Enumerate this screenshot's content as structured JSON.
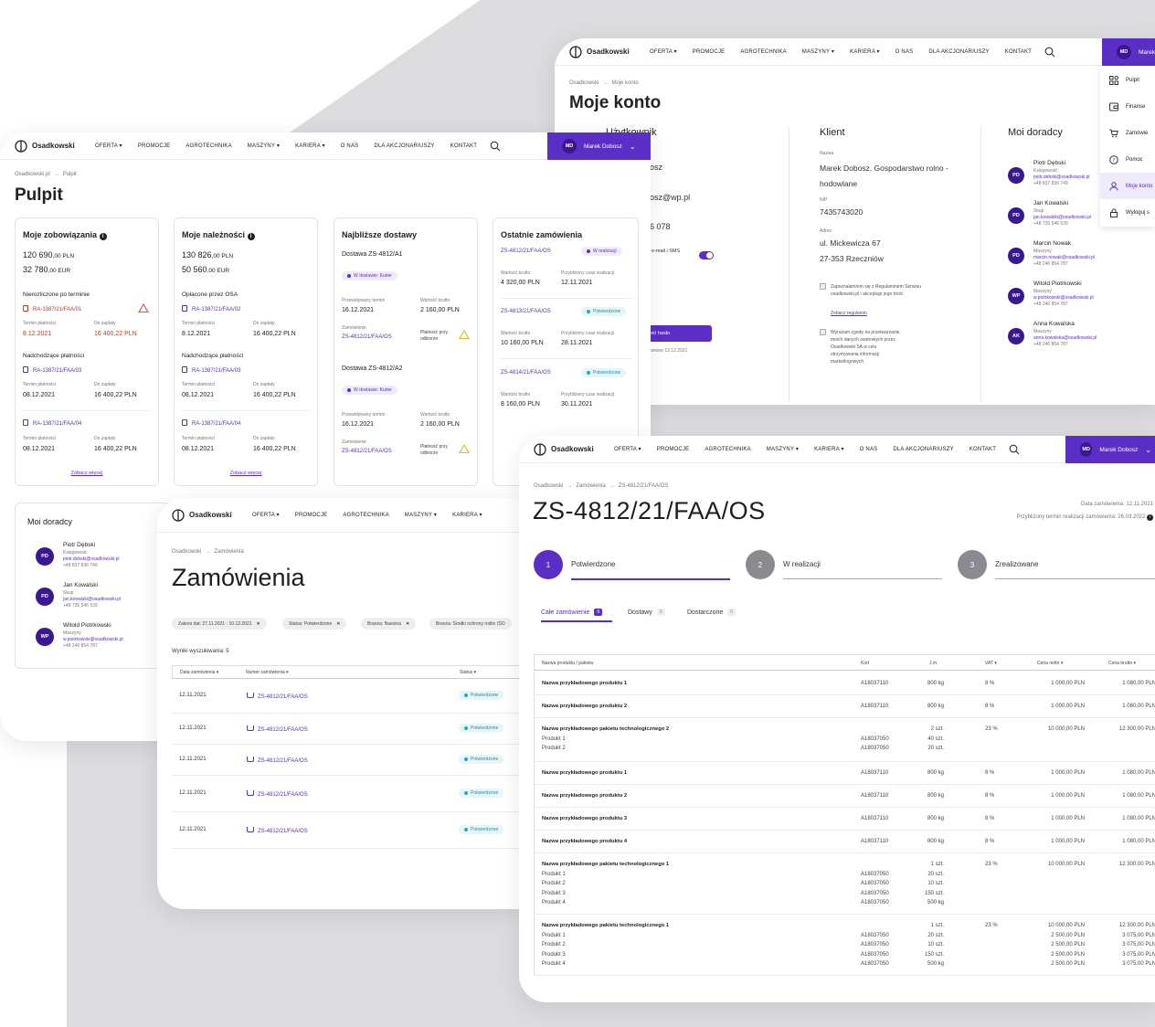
{
  "nav": {
    "logo": "Osadkowski",
    "items": [
      "OFERTA",
      "PROMOCJE",
      "AGROTECHNIKA",
      "MASZYNY",
      "KARIERA",
      "O NAS",
      "DLA AKCJONARIUSZY",
      "KONTAKT"
    ],
    "user_initials": "MD",
    "user_name": "Marek Dobosz",
    "user_name_short": "Marek"
  },
  "konto": {
    "crumb": [
      "Osadkowski",
      "Moje konto"
    ],
    "title": "Moje konto",
    "sections": {
      "user": "Użytkownik",
      "client": "Klient",
      "advisors": "Moi doradcy"
    },
    "user_partial": {
      "name": "osz",
      "email": "osz@wp.pl",
      "phone": "6 078",
      "sms": "e-mail i SMS",
      "button": "ień hasło",
      "changed": "ianone 12.12.2021"
    },
    "client": {
      "name_label": "Nazwa",
      "name": "Marek Dobosz. Gospodarstwo rolno - hodowlane",
      "nip_label": "NIP",
      "nip": "7435743020",
      "addr_label": "Adres",
      "addr1": "ul. Mickewicza 67",
      "addr2": "27-353 Rzeczniów",
      "consent1": "Zapoznałam/em się z Regulaminem Serwisu osadkowski.pl i akceptuję jego treść",
      "consent1_link": "Zobacz regulamin",
      "consent2": "Wyrażam zgodę na przetwarzanie moich danych osobowych przez Osadkowski SA w celu otrzymywania informacji marketingowych"
    },
    "advisors": [
      {
        "ini": "PD",
        "name": "Piotr Dębski",
        "role": "Księgowość",
        "email": "piotr.debski@osadkowski.pl",
        "phone": "+48 837 836 749"
      },
      {
        "ini": "PD",
        "name": "Jan Kowalski",
        "role": "Skup",
        "email": "jan.kowalski@osadkowski.pl",
        "phone": "+48 735 546 539"
      },
      {
        "ini": "PD",
        "name": "Marcin Nowak",
        "role": "Maszyny",
        "email": "marcin.nowak@osadkowski.pl",
        "phone": "+48 246 854 787"
      },
      {
        "ini": "WP",
        "name": "Witold Piotrkowski",
        "role": "Maszyny",
        "email": "w.piotrkowski@osadkowski.pl",
        "phone": "+48 246 854 787"
      },
      {
        "ini": "AK",
        "name": "Anna Kowalska",
        "role": "Maszyny",
        "email": "anna.kowalska@osadkowski.pl",
        "phone": "+48 246 854 787"
      }
    ],
    "menu": [
      "Pulpit",
      "Finanse",
      "Zamówie",
      "Pomoc",
      "Moje konto",
      "Wyloguj s"
    ]
  },
  "pulpit": {
    "crumb": [
      "Osadkowski.pl",
      "Pulpit"
    ],
    "title": "Pulpit",
    "obligations": {
      "title": "Moje zobowiązania",
      "amount1": "120 690",
      "dec1": ",00 PLN",
      "amount2": "32 780",
      "dec2": ",00 EUR",
      "overdue_title": "Nierozliczone po terminie",
      "overdue_doc": "RA-1387/21/FAA/01",
      "lbl_term": "Termin płatności",
      "lbl_pay": "Do zapłaty",
      "overdue_date": "8.12.2021",
      "overdue_amount": "16 400,22 PLN",
      "upcoming_title": "Nadchodzące płatności",
      "upcoming": [
        {
          "doc": "RA-1387/21/FAA/03",
          "date": "08.12.2021",
          "amount": "16 400,22 PLN"
        },
        {
          "doc": "RA-1387/21/FAA/04",
          "date": "08.12.2021",
          "amount": "16 400,22 PLN"
        }
      ],
      "more": "Zobacz więcej"
    },
    "receivables": {
      "title": "Moje należności",
      "amount1": "130 826",
      "dec1": ",00 PLN",
      "amount2": "50 560",
      "dec2": ",00 EUR",
      "paid_title": "Opłacone przez OSA",
      "paid_doc": "RA-1387/21/FAA/02",
      "paid_date": "8.12.2021",
      "paid_amount": "16 400,22 PLN",
      "upcoming_title": "Nadchodzące płatności",
      "upcoming": [
        {
          "doc": "RA-1387/21/FAA/03",
          "date": "08.12.2021",
          "amount": "16 400,22 PLN"
        },
        {
          "doc": "RA-1387/21/FAA/04",
          "date": "08.12.2021",
          "amount": "16 400,22 PLN"
        }
      ],
      "more": "Zobacz więcej"
    },
    "deliveries": {
      "title": "Najbliższe dostawy",
      "items": [
        {
          "name": "Dostawa ZS-4812/A1",
          "status": "W dostawie: Kurier",
          "lbl_term": "Przewidywany termin",
          "term": "16.12.2021",
          "lbl_val": "Wartość brutto",
          "val": "2 160,00 PLN",
          "lbl_order": "Zamówienie",
          "order": "ZS-4812/21/FAA/OS",
          "pay": "Płatność przy odbiorze"
        },
        {
          "name": "Dostawa ZS-4812/A2",
          "status": "W dostawie: Kurier",
          "lbl_term": "Przewidywany termin",
          "term": "16.12.2021",
          "lbl_val": "Wartość brutto",
          "val": "2 160,00 PLN",
          "lbl_order": "Zamówienie",
          "order": "ZS-4812/21/FAA/OS",
          "pay": "Płatność przy odbiorze"
        }
      ]
    },
    "orders": {
      "title": "Ostatnie zamówienia",
      "lbl_val": "Wartość brutto",
      "lbl_time": "Przybliżony czas realizacji",
      "items": [
        {
          "num": "ZS-4812/21/FAA/OS",
          "status": "W realizacji",
          "val": "4 320,00 PLN",
          "date": "12.11.2021"
        },
        {
          "num": "ZS-4813/21/FAA/OS",
          "status": "Potwierdzone",
          "val": "10 160,00 PLN",
          "date": "28.11.2021"
        },
        {
          "num": "ZS-4814/21/FAA/OS",
          "status": "Potwierdzone",
          "val": "8 160,00 PLN",
          "date": "30.11.2021"
        }
      ]
    },
    "advisors_title": "Moi doradcy",
    "advisors": [
      {
        "ini": "PD",
        "name": "Piotr Dębski",
        "role": "Księgowość",
        "email": "piotr.debski@osadkowski.pl",
        "phone": "+48 837 836 749"
      },
      {
        "ini": "PD",
        "name": "Jan Kowalski",
        "role": "Skup",
        "email": "jan.kowalski@osadkowski.pl",
        "phone": "+48 735 546 539"
      },
      {
        "ini": "WP",
        "name": "Witold Piotrkowski",
        "role": "Maszyny",
        "email": "w.piotrkowski@osadkowski.pl",
        "phone": "+48 246 854 787"
      }
    ]
  },
  "zam": {
    "crumb": [
      "Osadkowski",
      "Zamówienia"
    ],
    "title": "Zamówienia",
    "chips": [
      "Zakres dat: 27.11.2021 - 10.12.2021",
      "Status: Potwierdzone",
      "Branża: Nasiona",
      "Branża: Środki ochrony roślin (ŚO"
    ],
    "results": "Wyniki wyszukiwania: 5",
    "cols": [
      "Data zamówienia",
      "Numer zamówienia",
      "Status"
    ],
    "rows": [
      {
        "date": "12.11.2021",
        "num": "ZS-4812/21/FAA/OS",
        "status": "Potwierdzone"
      },
      {
        "date": "12.11.2021",
        "num": "ZS-4812/21/FAA/OS",
        "status": "Potwierdzone"
      },
      {
        "date": "12.11.2021",
        "num": "ZS-4812/21/FAA/OS",
        "status": "Potwierdzone"
      },
      {
        "date": "12.11.2021",
        "num": "ZS-4812/21/FAA/OS",
        "status": "Potwierdzone"
      },
      {
        "date": "12.11.2021",
        "num": "ZS-4812/21/FAA/OS",
        "status": "Potwierdzone"
      }
    ]
  },
  "order": {
    "crumb": [
      "Osadkowski",
      "Zamówienia",
      "ZS-4812/21/FAA/OS"
    ],
    "title": "ZS-4812/21/FAA/OS",
    "order_date": "Data zamówienia: 12.11.2021",
    "est": "Przybliżony termin realizacji zamówienia: 26.03.2022",
    "steps": [
      {
        "n": "1",
        "label": "Potwierdzone"
      },
      {
        "n": "2",
        "label": "W realizacji"
      },
      {
        "n": "3",
        "label": "Zrealizowane"
      }
    ],
    "tabs": [
      {
        "label": "Całe zamówienie",
        "count": "9"
      },
      {
        "label": "Dostawy",
        "count": "0"
      },
      {
        "label": "Dostarczone",
        "count": "0"
      }
    ],
    "cols": [
      "Nazwa produktu / pakietu",
      "Kod",
      "J.m.",
      "VAT",
      "Cena netto",
      "Cena brutto"
    ],
    "rows": [
      {
        "name": [
          "Nazwa przykładowego produktu 1"
        ],
        "code": [
          "",
          "A18037110"
        ],
        "um": [
          "800 kg"
        ],
        "vat": "8 %",
        "net": [
          "1 000,00 PLN"
        ],
        "gross": [
          "1 080,00 PLN"
        ]
      },
      {
        "name": [
          "Nazwa przykładowego produktu 2"
        ],
        "code": [
          "",
          "A18037110"
        ],
        "um": [
          "800 kg"
        ],
        "vat": "8 %",
        "net": [
          "1 000,00 PLN"
        ],
        "gross": [
          "1 080,00 PLN"
        ]
      },
      {
        "name": [
          "Nazwa przykładowego pakietu technologicznego 2",
          "Produkt 1",
          "Produkt 2"
        ],
        "code": [
          "",
          "A18037050",
          "A18037050"
        ],
        "um": [
          "2 szt.",
          "40 szt.",
          "20 szt."
        ],
        "vat": "23 %",
        "net": [
          "10 000,00 PLN"
        ],
        "gross": [
          "12 300,00 PLN"
        ]
      },
      {
        "name": [
          "Nazwa przykładowego produktu 1"
        ],
        "code": [
          "",
          "A18037110"
        ],
        "um": [
          "800 kg"
        ],
        "vat": "8 %",
        "net": [
          "1 000,00 PLN"
        ],
        "gross": [
          "1 080,00 PLN"
        ]
      },
      {
        "name": [
          "Nazwa przykładowego produktu 2"
        ],
        "code": [
          "",
          "A18037110"
        ],
        "um": [
          "800 kg"
        ],
        "vat": "8 %",
        "net": [
          "1 000,00 PLN"
        ],
        "gross": [
          "1 080,00 PLN"
        ]
      },
      {
        "name": [
          "Nazwa przykładowego produktu 3"
        ],
        "code": [
          "",
          "A18037110"
        ],
        "um": [
          "800 kg"
        ],
        "vat": "8 %",
        "net": [
          "1 000,00 PLN"
        ],
        "gross": [
          "1 080,00 PLN"
        ]
      },
      {
        "name": [
          "Nazwa przykładowego produktu 4"
        ],
        "code": [
          "",
          "A18037110"
        ],
        "um": [
          "800 kg"
        ],
        "vat": "8 %",
        "net": [
          "1 000,00 PLN"
        ],
        "gross": [
          "1 080,00 PLN"
        ]
      },
      {
        "name": [
          "Nazwa przykładowego pakietu technologicznego 1",
          "Produkt 1",
          "Produkt 2",
          "Produkt 3",
          "Produkt 4"
        ],
        "code": [
          "",
          "A18037050",
          "A18037050",
          "A18037050",
          "A18037050"
        ],
        "um": [
          "1 szt.",
          "20 szt.",
          "10 szt.",
          "150 szt.",
          "500 kg"
        ],
        "vat": "23 %",
        "net": [
          "10 000,00 PLN"
        ],
        "gross": [
          "12 300,00 PLN"
        ]
      },
      {
        "name": [
          "Nazwa przykładowego pakietu technologicznego 1",
          "Produkt 1",
          "Produkt 2",
          "Produkt 3",
          "Produkt 4"
        ],
        "code": [
          "",
          "A18037050",
          "A18037050",
          "A18037050",
          "A18037050"
        ],
        "um": [
          "1 szt.",
          "20 szt.",
          "10 szt.",
          "150 szt.",
          "500 kg"
        ],
        "vat": "23 %",
        "net": [
          "10 000,00 PLN",
          "2 500,00 PLN",
          "2 500,00 PLN",
          "2 500,00 PLN",
          "2 500,00 PLN"
        ],
        "gross": [
          "12 300,00 PLN",
          "3 075,00 PLN",
          "3 075,00 PLN",
          "3 075,00 PLN",
          "3 075,00 PLN"
        ]
      }
    ]
  }
}
